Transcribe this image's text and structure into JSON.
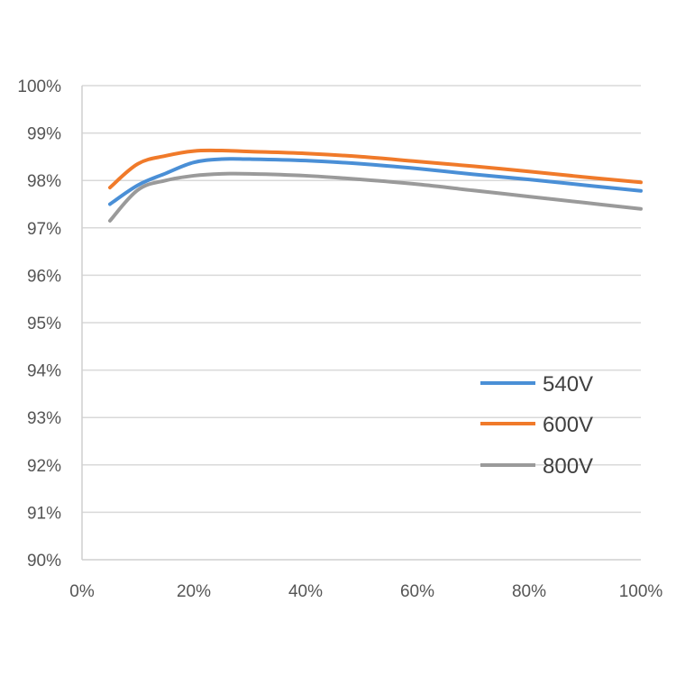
{
  "chart_data": {
    "type": "line",
    "title": "",
    "xlabel": "",
    "ylabel": "",
    "x": [
      5,
      10,
      15,
      20,
      25,
      30,
      40,
      50,
      60,
      70,
      80,
      90,
      100
    ],
    "xlim": [
      0,
      100
    ],
    "ylim": [
      90,
      100
    ],
    "x_ticks": [
      0,
      20,
      40,
      60,
      80,
      100
    ],
    "y_ticks": [
      90,
      91,
      92,
      93,
      94,
      95,
      96,
      97,
      98,
      99,
      100
    ],
    "x_tick_labels": [
      "0%",
      "20%",
      "40%",
      "60%",
      "80%",
      "100%"
    ],
    "y_tick_labels": [
      "90%",
      "91%",
      "92%",
      "93%",
      "94%",
      "95%",
      "96%",
      "97%",
      "98%",
      "99%",
      "100%"
    ],
    "grid": true,
    "legend_position": "lower-right",
    "series": [
      {
        "name": "540V",
        "color": "#4a8fd6",
        "values": [
          97.5,
          97.9,
          98.15,
          98.38,
          98.45,
          98.45,
          98.42,
          98.35,
          98.25,
          98.13,
          98.02,
          97.9,
          97.78
        ]
      },
      {
        "name": "600V",
        "color": "#f07a2a",
        "values": [
          97.85,
          98.35,
          98.52,
          98.62,
          98.63,
          98.61,
          98.57,
          98.5,
          98.4,
          98.3,
          98.19,
          98.07,
          97.96
        ]
      },
      {
        "name": "800V",
        "color": "#9a9a9a",
        "values": [
          97.15,
          97.8,
          98.0,
          98.1,
          98.14,
          98.14,
          98.1,
          98.02,
          97.92,
          97.79,
          97.66,
          97.53,
          97.4
        ]
      }
    ]
  }
}
